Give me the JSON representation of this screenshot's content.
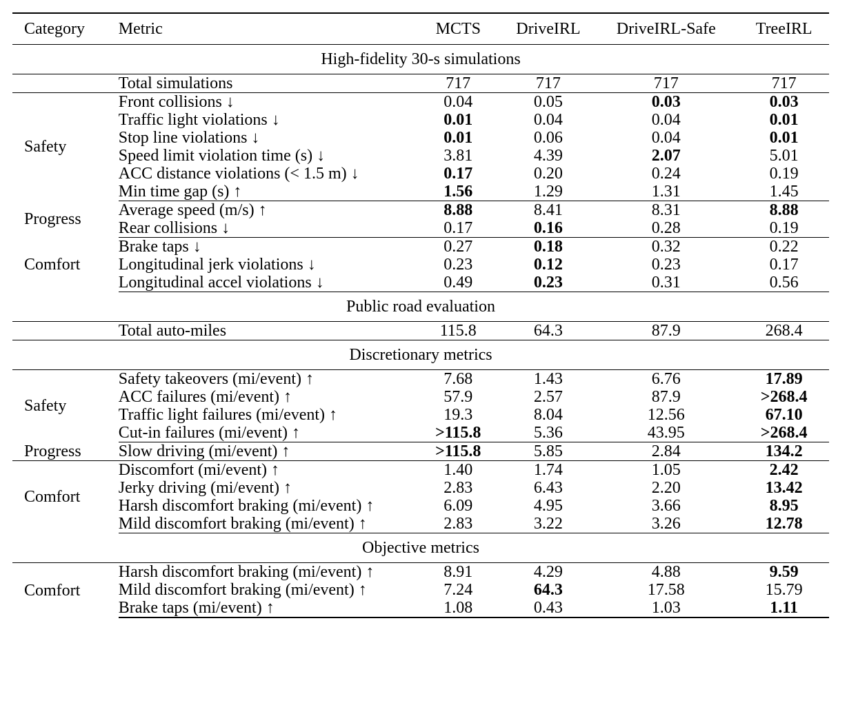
{
  "header": {
    "category": "Category",
    "metric": "Metric",
    "methods": [
      "MCTS",
      "DriveIRL",
      "DriveIRL-Safe",
      "TreeIRL"
    ]
  },
  "sections": [
    {
      "title": "High-fidelity 30-s simulations",
      "bold": true,
      "groups": [
        {
          "category": "",
          "rows": [
            {
              "metric": "Total simulations",
              "values": [
                "717",
                "717",
                "717",
                "717"
              ],
              "bold": []
            }
          ]
        },
        {
          "category": "Safety",
          "rows": [
            {
              "metric": "Front collisions ↓",
              "values": [
                "0.04",
                "0.05",
                "0.03",
                "0.03"
              ],
              "bold": [
                2,
                3
              ]
            },
            {
              "metric": "Traffic light violations ↓",
              "values": [
                "0.01",
                "0.04",
                "0.04",
                "0.01"
              ],
              "bold": [
                0,
                3
              ]
            },
            {
              "metric": "Stop line violations ↓",
              "values": [
                "0.01",
                "0.06",
                "0.04",
                "0.01"
              ],
              "bold": [
                0,
                3
              ]
            },
            {
              "metric": "Speed limit violation time (s) ↓",
              "values": [
                "3.81",
                "4.39",
                "2.07",
                "5.01"
              ],
              "bold": [
                2
              ]
            },
            {
              "metric": "ACC distance violations (< 1.5 m) ↓",
              "values": [
                "0.17",
                "0.20",
                "0.24",
                "0.19"
              ],
              "bold": [
                0
              ]
            },
            {
              "metric": "Min time gap (s) ↑",
              "values": [
                "1.56",
                "1.29",
                "1.31",
                "1.45"
              ],
              "bold": [
                0
              ]
            }
          ]
        },
        {
          "category": "Progress",
          "rows": [
            {
              "metric": "Average speed (m/s) ↑",
              "values": [
                "8.88",
                "8.41",
                "8.31",
                "8.88"
              ],
              "bold": [
                0,
                3
              ]
            },
            {
              "metric": "Rear collisions ↓",
              "values": [
                "0.17",
                "0.16",
                "0.28",
                "0.19"
              ],
              "bold": [
                1
              ]
            }
          ]
        },
        {
          "category": "Comfort",
          "rows": [
            {
              "metric": "Brake taps ↓",
              "values": [
                "0.27",
                "0.18",
                "0.32",
                "0.22"
              ],
              "bold": [
                1
              ]
            },
            {
              "metric": "Longitudinal jerk violations ↓",
              "values": [
                "0.23",
                "0.12",
                "0.23",
                "0.17"
              ],
              "bold": [
                1
              ]
            },
            {
              "metric": "Longitudinal accel violations ↓",
              "values": [
                "0.49",
                "0.23",
                "0.31",
                "0.56"
              ],
              "bold": [
                1
              ]
            }
          ]
        }
      ]
    },
    {
      "title": "Public road evaluation",
      "bold": true,
      "groups": [
        {
          "category": "",
          "rows": [
            {
              "metric": "Total auto-miles",
              "values": [
                "115.8",
                "64.3",
                "87.9",
                "268.4"
              ],
              "bold": []
            }
          ]
        }
      ]
    },
    {
      "title": "Discretionary metrics",
      "bold": false,
      "groups": [
        {
          "category": "Safety",
          "rows": [
            {
              "metric": "Safety takeovers (mi/event) ↑",
              "values": [
                "7.68",
                "1.43",
                "6.76",
                "17.89"
              ],
              "bold": [
                3
              ]
            },
            {
              "metric": "ACC failures (mi/event) ↑",
              "values": [
                "57.9",
                "2.57",
                "87.9",
                ">268.4"
              ],
              "bold": [
                3
              ]
            },
            {
              "metric": "Traffic light failures (mi/event) ↑",
              "values": [
                "19.3",
                "8.04",
                "12.56",
                "67.10"
              ],
              "bold": [
                3
              ]
            },
            {
              "metric": "Cut-in failures (mi/event) ↑",
              "values": [
                ">115.8",
                "5.36",
                "43.95",
                ">268.4"
              ],
              "bold": [
                0,
                3
              ]
            }
          ]
        },
        {
          "category": "Progress",
          "rows": [
            {
              "metric": "Slow driving (mi/event) ↑",
              "values": [
                ">115.8",
                "5.85",
                "2.84",
                "134.2"
              ],
              "bold": [
                0,
                3
              ]
            }
          ]
        },
        {
          "category": "Comfort",
          "rows": [
            {
              "metric": "Discomfort (mi/event) ↑",
              "values": [
                "1.40",
                "1.74",
                "1.05",
                "2.42"
              ],
              "bold": [
                3
              ]
            },
            {
              "metric": "Jerky driving (mi/event) ↑",
              "values": [
                "2.83",
                "6.43",
                "2.20",
                "13.42"
              ],
              "bold": [
                3
              ]
            },
            {
              "metric": "Harsh discomfort braking (mi/event) ↑",
              "values": [
                "6.09",
                "4.95",
                "3.66",
                "8.95"
              ],
              "bold": [
                3
              ]
            },
            {
              "metric": "Mild discomfort braking (mi/event) ↑",
              "values": [
                "2.83",
                "3.22",
                "3.26",
                "12.78"
              ],
              "bold": [
                3
              ]
            }
          ]
        }
      ]
    },
    {
      "title": "Objective metrics",
      "bold": false,
      "groups": [
        {
          "category": "Comfort",
          "rows": [
            {
              "metric": "Harsh discomfort braking (mi/event) ↑",
              "values": [
                "8.91",
                "4.29",
                "4.88",
                "9.59"
              ],
              "bold": [
                3
              ]
            },
            {
              "metric": "Mild discomfort braking (mi/event) ↑",
              "values": [
                "7.24",
                "64.3",
                "17.58",
                "15.79"
              ],
              "bold": [
                1
              ]
            },
            {
              "metric": "Brake taps (mi/event) ↑",
              "values": [
                "1.08",
                "0.43",
                "1.03",
                "1.11"
              ],
              "bold": [
                3
              ]
            }
          ]
        }
      ]
    }
  ]
}
